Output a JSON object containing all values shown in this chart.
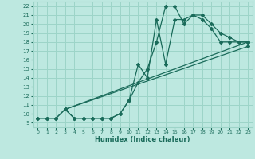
{
  "xlabel": "Humidex (Indice chaleur)",
  "xlim": [
    -0.5,
    23.5
  ],
  "ylim": [
    8.5,
    22.5
  ],
  "xticks": [
    0,
    1,
    2,
    3,
    4,
    5,
    6,
    7,
    8,
    9,
    10,
    11,
    12,
    13,
    14,
    15,
    16,
    17,
    18,
    19,
    20,
    21,
    22,
    23
  ],
  "yticks": [
    9,
    10,
    11,
    12,
    13,
    14,
    15,
    16,
    17,
    18,
    19,
    20,
    21,
    22
  ],
  "bg_color": "#bde8e0",
  "grid_color": "#9dd4c8",
  "line_color": "#1a6b5a",
  "curves": [
    {
      "x": [
        0,
        1,
        2,
        3,
        4,
        5,
        6,
        7,
        8,
        9,
        10,
        11,
        12,
        13,
        14,
        15,
        16,
        17,
        18,
        19,
        20,
        21,
        22,
        23
      ],
      "y": [
        9.5,
        9.5,
        9.5,
        10.5,
        9.5,
        9.5,
        9.5,
        9.5,
        9.5,
        10.0,
        11.5,
        13.5,
        15.0,
        18.0,
        22.0,
        22.0,
        20.0,
        21.0,
        21.0,
        20.0,
        19.0,
        18.5,
        18.0,
        18.0
      ]
    },
    {
      "x": [
        0,
        1,
        2,
        3,
        4,
        5,
        6,
        7,
        8,
        9,
        10,
        11,
        12,
        13,
        14,
        15,
        16,
        17,
        18,
        19,
        20,
        21,
        22,
        23
      ],
      "y": [
        9.5,
        9.5,
        9.5,
        10.5,
        9.5,
        9.5,
        9.5,
        9.5,
        9.5,
        10.0,
        11.5,
        15.5,
        14.0,
        20.5,
        15.5,
        20.5,
        20.5,
        21.0,
        20.5,
        19.5,
        18.0,
        18.0,
        18.0,
        18.0
      ]
    },
    {
      "x": [
        3,
        23
      ],
      "y": [
        10.5,
        18.0
      ]
    },
    {
      "x": [
        3,
        23
      ],
      "y": [
        10.5,
        17.5
      ]
    }
  ]
}
